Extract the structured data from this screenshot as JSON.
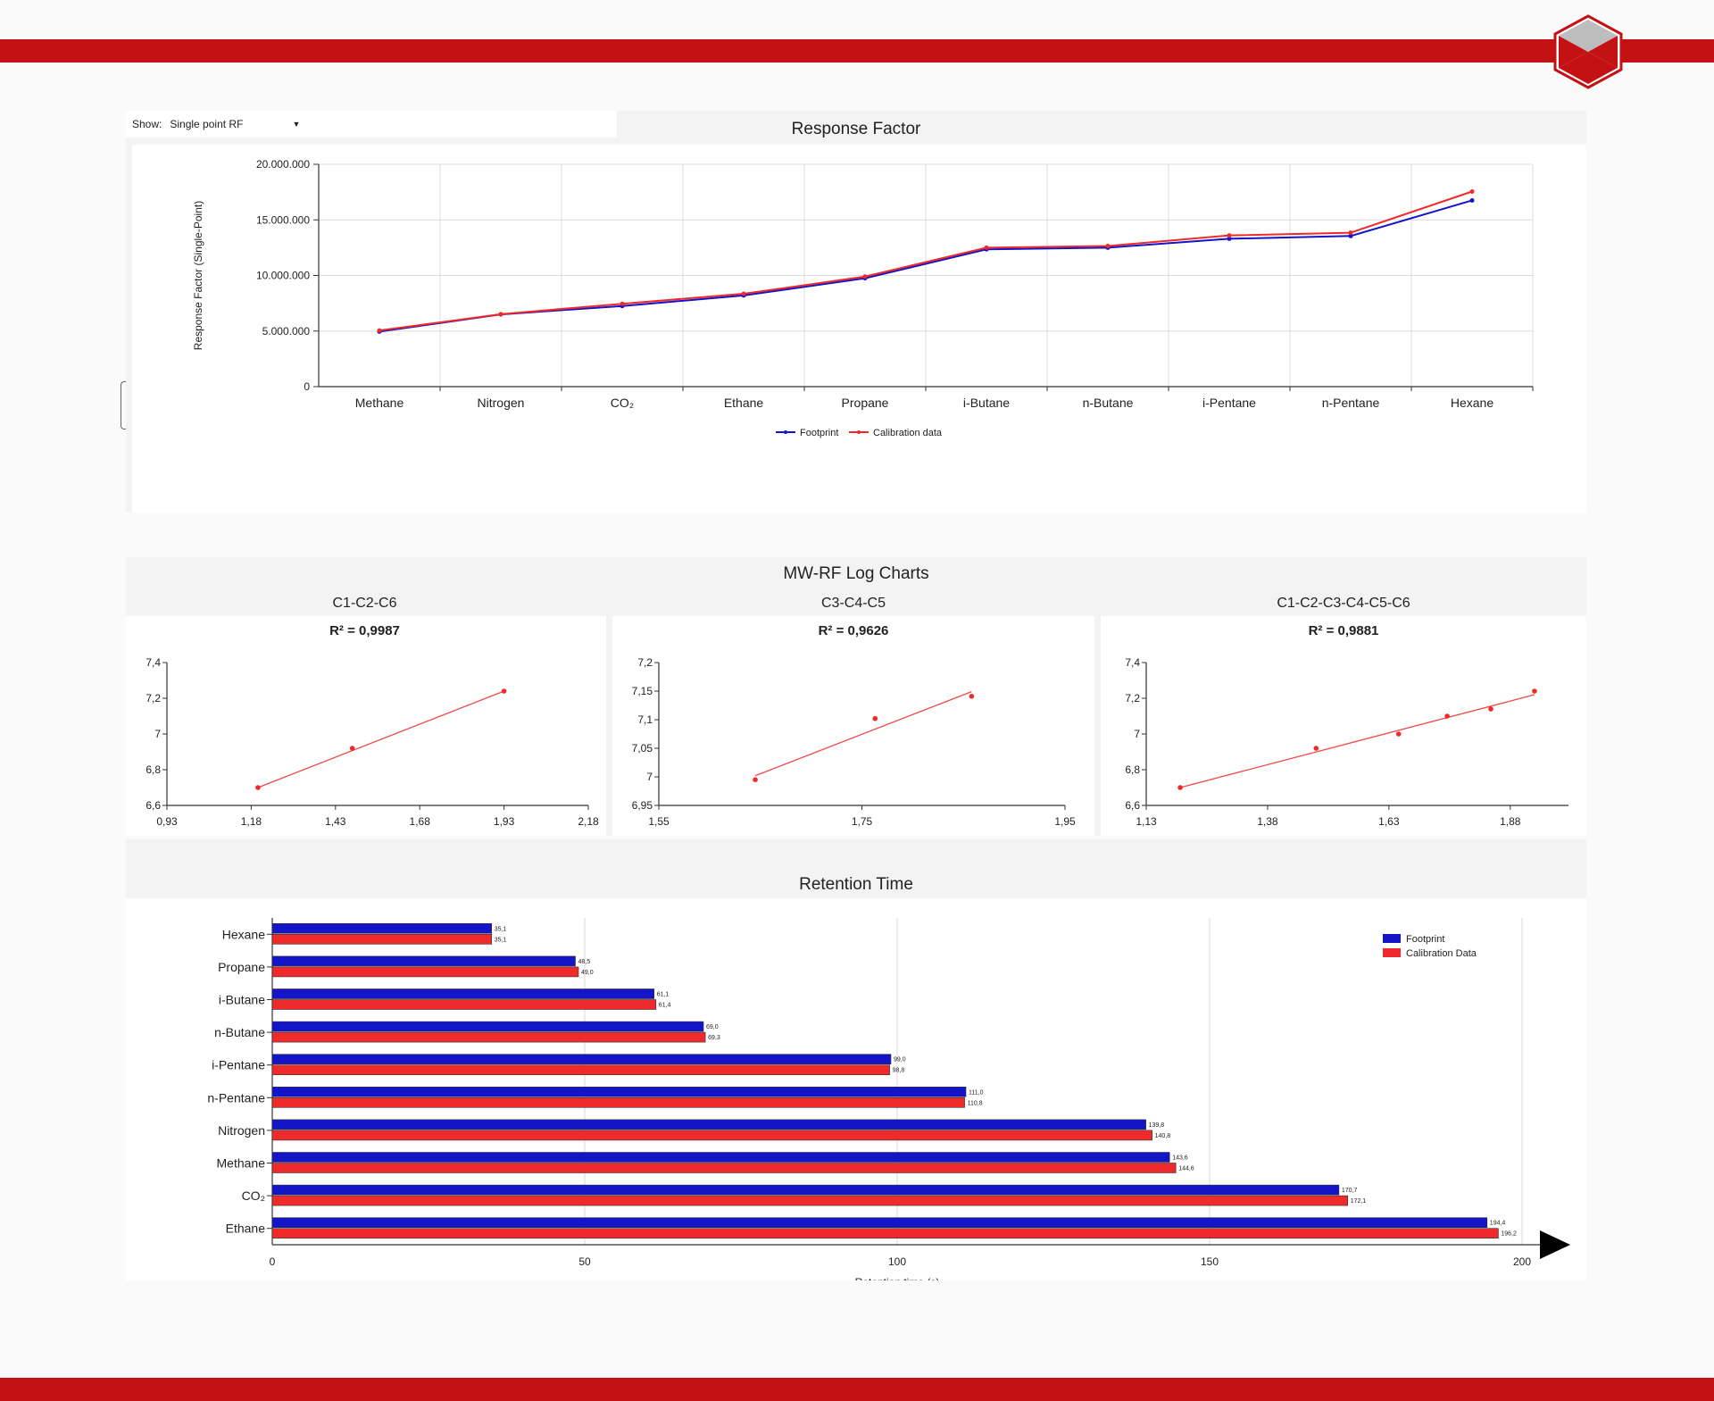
{
  "colors": {
    "brand_red": "#c41214",
    "footprint": "#1414c8",
    "calibration": "#ef2a2a",
    "trend": "#f04848"
  },
  "response_panel": {
    "show_label": "Show:",
    "show_value": "Single point RF",
    "title": "Response Factor"
  },
  "mw_panel": {
    "title": "MW-RF Log Charts"
  },
  "retention_panel": {
    "title": "Retention Time"
  },
  "chart_data": [
    {
      "id": "response-factor",
      "type": "line",
      "title": "Response Factor",
      "ylabel": "Response Factor (Single-Point)",
      "xlabel": "",
      "categories": [
        "Methane",
        "Nitrogen",
        "CO₂",
        "Ethane",
        "Propane",
        "i-Butane",
        "n-Butane",
        "i-Pentane",
        "n-Pentane",
        "Hexane"
      ],
      "ylim": [
        0,
        20000000
      ],
      "yticks": [
        0,
        5000000,
        10000000,
        15000000,
        20000000
      ],
      "ytick_labels": [
        "0",
        "5.000.000",
        "10.000.000",
        "15.000.000",
        "20.000.000"
      ],
      "grid": true,
      "legend": "bottom-center",
      "series": [
        {
          "name": "Footprint",
          "values": [
            4950000,
            6500000,
            7250000,
            8200000,
            9750000,
            12350000,
            12500000,
            13300000,
            13550000,
            16750000
          ]
        },
        {
          "name": "Calibration data",
          "values": [
            5050000,
            6520000,
            7450000,
            8350000,
            9900000,
            12500000,
            12650000,
            13600000,
            13850000,
            17550000
          ]
        }
      ]
    },
    {
      "id": "log-c1-c2-c6",
      "type": "scatter",
      "title": "C1-C2-C6",
      "subtitle": "R² = 0,9987",
      "xlim": [
        0.93,
        2.18
      ],
      "xtick_labels": [
        "0,93",
        "1,18",
        "1,43",
        "1,68",
        "1,93",
        "2,18"
      ],
      "xticks": [
        0.93,
        1.18,
        1.43,
        1.68,
        1.93,
        2.18
      ],
      "ylim": [
        6.6,
        7.4
      ],
      "ytick_labels": [
        "6,6",
        "6,8",
        "7",
        "7,2",
        "7,4"
      ],
      "yticks": [
        6.6,
        6.8,
        7.0,
        7.2,
        7.4
      ],
      "points": [
        [
          1.2,
          6.7
        ],
        [
          1.48,
          6.92
        ],
        [
          1.93,
          7.24
        ]
      ],
      "trend": [
        [
          1.2,
          6.7
        ],
        [
          1.93,
          7.24
        ]
      ]
    },
    {
      "id": "log-c3-c4-c5",
      "type": "scatter",
      "title": "C3-C4-C5",
      "subtitle": "R² = 0,9626",
      "xlim": [
        1.55,
        1.95
      ],
      "xtick_labels": [
        "1,55",
        "1,75",
        "1,95"
      ],
      "xticks": [
        1.55,
        1.75,
        1.95
      ],
      "ylim": [
        6.95,
        7.2
      ],
      "ytick_labels": [
        "6,95",
        "7",
        "7,05",
        "7,1",
        "7,15",
        "7,2"
      ],
      "yticks": [
        6.95,
        7.0,
        7.05,
        7.1,
        7.15,
        7.2
      ],
      "points": [
        [
          1.645,
          6.995
        ],
        [
          1.763,
          7.102
        ],
        [
          1.858,
          7.141
        ]
      ],
      "trend": [
        [
          1.645,
          7.002
        ],
        [
          1.858,
          7.149
        ]
      ]
    },
    {
      "id": "log-c1-c6",
      "type": "scatter",
      "title": "C1-C2-C3-C4-C5-C6",
      "subtitle": "R² = 0,9881",
      "xlim": [
        1.13,
        2.0
      ],
      "xtick_labels": [
        "1,13",
        "1,38",
        "1,63",
        "1,88"
      ],
      "xticks": [
        1.13,
        1.38,
        1.63,
        1.88
      ],
      "ylim": [
        6.6,
        7.4
      ],
      "ytick_labels": [
        "6,6",
        "6,8",
        "7",
        "7,2",
        "7,4"
      ],
      "yticks": [
        6.6,
        6.8,
        7.0,
        7.2,
        7.4
      ],
      "points": [
        [
          1.2,
          6.7
        ],
        [
          1.48,
          6.92
        ],
        [
          1.65,
          7.0
        ],
        [
          1.75,
          7.1
        ],
        [
          1.84,
          7.14
        ],
        [
          1.93,
          7.24
        ]
      ],
      "trend": [
        [
          1.2,
          6.7
        ],
        [
          1.93,
          7.22
        ]
      ]
    },
    {
      "id": "retention-time",
      "type": "bar",
      "orientation": "horizontal",
      "title": "Retention Time",
      "xlabel": "Retention time (s)",
      "xlim": [
        0,
        200
      ],
      "xticks": [
        0,
        50,
        100,
        150,
        200
      ],
      "xtick_labels": [
        "0",
        "50",
        "100",
        "150",
        "200"
      ],
      "legend": "top-right",
      "categories": [
        "Hexane",
        "Propane",
        "i-Butane",
        "n-Butane",
        "i-Pentane",
        "n-Pentane",
        "Nitrogen",
        "Methane",
        "CO₂",
        "Ethane"
      ],
      "series": [
        {
          "name": "Footprint",
          "values": [
            35.1,
            48.5,
            61.1,
            69.0,
            99.0,
            111.0,
            139.8,
            143.6,
            170.7,
            194.4
          ],
          "labels": [
            "35,1",
            "48,5",
            "61,1",
            "69,0",
            "99,0",
            "111,0",
            "139,8",
            "143,6",
            "170,7",
            "194,4"
          ]
        },
        {
          "name": "Calibration Data",
          "values": [
            35.1,
            49.0,
            61.4,
            69.3,
            98.8,
            110.8,
            140.8,
            144.6,
            172.1,
            196.2
          ],
          "labels": [
            "35,1",
            "49,0",
            "61,4",
            "69,3",
            "98,8",
            "110,8",
            "140,8",
            "144,6",
            "172,1",
            "196,2"
          ]
        }
      ]
    }
  ]
}
